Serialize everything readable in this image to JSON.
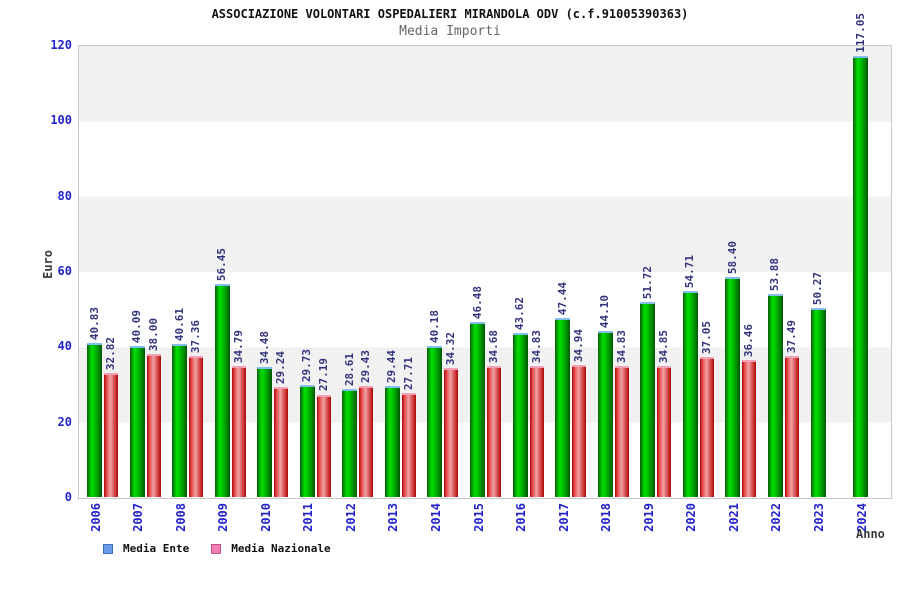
{
  "header": {
    "title": "ASSOCIAZIONE VOLONTARI OSPEDALIERI MIRANDOLA ODV (c.f.91005390363)",
    "subtitle": "Media Importi"
  },
  "chart_data": {
    "type": "bar",
    "title": "ASSOCIAZIONE VOLONTARI OSPEDALIERI MIRANDOLA ODV (c.f.91005390363)",
    "subtitle": "Media Importi",
    "xlabel": "Anno",
    "ylabel": "Euro",
    "ylim": [
      0,
      120
    ],
    "yticks": [
      0,
      20,
      40,
      60,
      80,
      100,
      120
    ],
    "grid": "alternating-horizontal-bands",
    "legend_position": "bottom-left",
    "categories": [
      "2006",
      "2007",
      "2008",
      "2009",
      "2010",
      "2011",
      "2012",
      "2013",
      "2014",
      "2015",
      "2016",
      "2017",
      "2018",
      "2019",
      "2020",
      "2021",
      "2022",
      "2023",
      "2024"
    ],
    "series": [
      {
        "name": "Media Ente",
        "values": [
          40.83,
          40.09,
          40.61,
          56.45,
          34.48,
          29.73,
          28.61,
          29.44,
          40.18,
          46.48,
          43.62,
          47.44,
          44.1,
          51.72,
          54.71,
          58.4,
          53.88,
          50.27,
          117.05
        ]
      },
      {
        "name": "Media Nazionale",
        "values": [
          32.82,
          38.0,
          37.36,
          34.79,
          29.24,
          27.19,
          29.43,
          27.71,
          34.32,
          34.68,
          34.83,
          34.94,
          34.83,
          34.85,
          37.05,
          36.46,
          37.49,
          null,
          null
        ]
      }
    ],
    "colors": {
      "ente_bar": "#00c400",
      "nazionale_bar": "#e03030",
      "ente_legend_fill": "#699ae8",
      "ente_legend_border": "#3f6fc0",
      "nazionale_legend_fill": "#ee7fb2",
      "nazionale_legend_border": "#c6538c",
      "tick_label": "#2323cc",
      "value_label": "#35357e",
      "band_gray": "#f1f1f1"
    }
  },
  "legend": {
    "items": [
      {
        "label": "Media Ente"
      },
      {
        "label": "Media Nazionale"
      }
    ]
  }
}
